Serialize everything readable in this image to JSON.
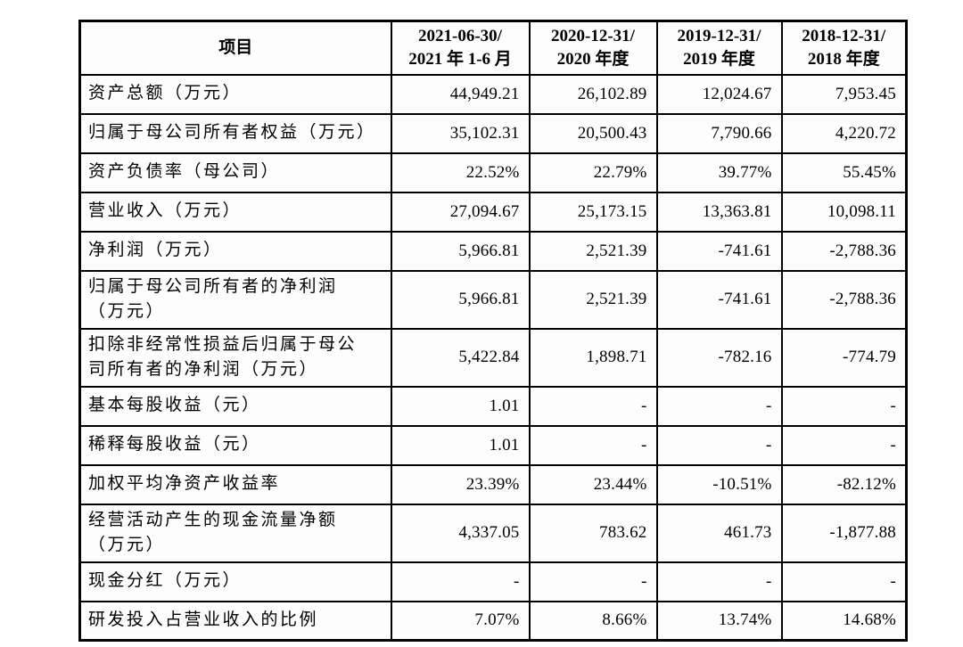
{
  "page": {
    "background": "#fefefe"
  },
  "table": {
    "border_color": "#000000",
    "text_color": "#000000",
    "header": {
      "item_label": "项目",
      "periods": [
        {
          "line1": "2021-06-30/",
          "line2": "2021 年 1-6 月"
        },
        {
          "line1": "2020-12-31/",
          "line2": "2020 年度"
        },
        {
          "line1": "2019-12-31/",
          "line2": "2019 年度"
        },
        {
          "line1": "2018-12-31/",
          "line2": "2018 年度"
        }
      ]
    },
    "rows": [
      {
        "label": "资产总额（万元）",
        "values": [
          "44,949.21",
          "26,102.89",
          "12,024.67",
          "7,953.45"
        ]
      },
      {
        "label": "归属于母公司所有者权益（万元）",
        "values": [
          "35,102.31",
          "20,500.43",
          "7,790.66",
          "4,220.72"
        ]
      },
      {
        "label": "资产负债率（母公司）",
        "values": [
          "22.52%",
          "22.79%",
          "39.77%",
          "55.45%"
        ]
      },
      {
        "label": "营业收入（万元）",
        "values": [
          "27,094.67",
          "25,173.15",
          "13,363.81",
          "10,098.11"
        ]
      },
      {
        "label": "净利润（万元）",
        "values": [
          "5,966.81",
          "2,521.39",
          "-741.61",
          "-2,788.36"
        ]
      },
      {
        "label": "归属于母公司所有者的净利润\n（万元）",
        "values": [
          "5,966.81",
          "2,521.39",
          "-741.61",
          "-2,788.36"
        ]
      },
      {
        "label": "扣除非经常性损益后归属于母公\n司所有者的净利润（万元）",
        "values": [
          "5,422.84",
          "1,898.71",
          "-782.16",
          "-774.79"
        ]
      },
      {
        "label": "基本每股收益（元）",
        "values": [
          "1.01",
          "-",
          "-",
          "-"
        ]
      },
      {
        "label": "稀释每股收益（元）",
        "values": [
          "1.01",
          "-",
          "-",
          "-"
        ]
      },
      {
        "label": "加权平均净资产收益率",
        "values": [
          "23.39%",
          "23.44%",
          "-10.51%",
          "-82.12%"
        ]
      },
      {
        "label": "经营活动产生的现金流量净额\n（万元）",
        "values": [
          "4,337.05",
          "783.62",
          "461.73",
          "-1,877.88"
        ]
      },
      {
        "label": "现金分红（万元）",
        "values": [
          "-",
          "-",
          "-",
          "-"
        ]
      },
      {
        "label": "研发投入占营业收入的比例",
        "values": [
          "7.07%",
          "8.66%",
          "13.74%",
          "14.68%"
        ]
      }
    ]
  }
}
